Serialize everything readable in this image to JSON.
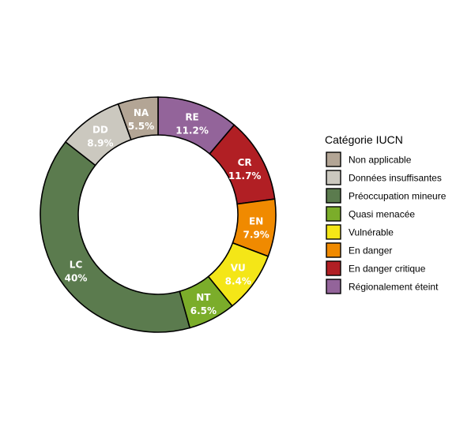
{
  "chart_data": {
    "type": "pie",
    "donut": true,
    "legend_title": "Catégorie IUCN",
    "legend_position": "right",
    "segments": [
      {
        "code": "RE",
        "label": "Régionalement éteint",
        "percent": 11.2,
        "pct_label": "11.2%",
        "color": "#93649a"
      },
      {
        "code": "CR",
        "label": "En danger critique",
        "percent": 11.7,
        "pct_label": "11.7%",
        "color": "#b11f24"
      },
      {
        "code": "EN",
        "label": "En danger",
        "percent": 7.9,
        "pct_label": "7.9%",
        "color": "#f08a00"
      },
      {
        "code": "VU",
        "label": "Vulnérable",
        "percent": 8.4,
        "pct_label": "8.4%",
        "color": "#f4e617"
      },
      {
        "code": "NT",
        "label": "Quasi menacée",
        "percent": 6.5,
        "pct_label": "6.5%",
        "color": "#7bad2a"
      },
      {
        "code": "LC",
        "label": "Préoccupation mineure",
        "percent": 40,
        "pct_label": "40%",
        "color": "#5b7b4e"
      },
      {
        "code": "DD",
        "label": "Données insuffisantes",
        "percent": 8.9,
        "pct_label": "8.9%",
        "color": "#cbc8bf"
      },
      {
        "code": "NA",
        "label": "Non applicable",
        "percent": 5.5,
        "pct_label": "5.5%",
        "color": "#b3a595"
      }
    ],
    "legend_order": [
      "NA",
      "DD",
      "LC",
      "NT",
      "VU",
      "EN",
      "CR",
      "RE"
    ]
  }
}
